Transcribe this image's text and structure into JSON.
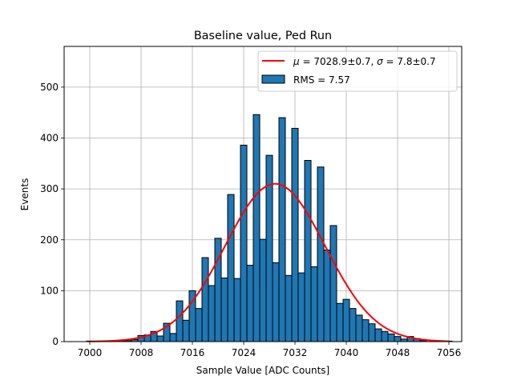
{
  "chart_data": {
    "type": "bar",
    "title": "Baseline value, Ped Run",
    "xlabel": "Sample Value [ADC Counts]",
    "ylabel": "Events",
    "xlim": [
      6996,
      7058
    ],
    "ylim": [
      0,
      580
    ],
    "xticks": [
      7000,
      7008,
      7016,
      7024,
      7032,
      7040,
      7048,
      7056
    ],
    "yticks": [
      0,
      100,
      200,
      300,
      400,
      500
    ],
    "grid": true,
    "legend_position": "top-right",
    "bin_width": 1,
    "histogram": {
      "name": "RMS = 7.57",
      "color": "#1f77b4",
      "edgecolor": "#000000",
      "bin_centers": [
        7000,
        7001,
        7002,
        7003,
        7004,
        7005,
        7006,
        7007,
        7008,
        7009,
        7010,
        7011,
        7012,
        7013,
        7014,
        7015,
        7016,
        7017,
        7018,
        7019,
        7020,
        7021,
        7022,
        7023,
        7024,
        7025,
        7026,
        7027,
        7028,
        7029,
        7030,
        7031,
        7032,
        7033,
        7034,
        7035,
        7036,
        7037,
        7038,
        7039,
        7040,
        7041,
        7042,
        7043,
        7044,
        7045,
        7046,
        7047,
        7048,
        7049,
        7050,
        7051,
        7052,
        7053,
        7054,
        7055,
        7056
      ],
      "counts": [
        1,
        0,
        1,
        1,
        0,
        2,
        2,
        4,
        12,
        13,
        20,
        11,
        36,
        16,
        80,
        42,
        100,
        65,
        165,
        110,
        203,
        125,
        289,
        124,
        386,
        150,
        446,
        201,
        366,
        155,
        440,
        130,
        419,
        135,
        356,
        147,
        343,
        180,
        228,
        75,
        83,
        65,
        52,
        43,
        35,
        25,
        20,
        15,
        10,
        5,
        10,
        6,
        2,
        0,
        1,
        0,
        1
      ]
    },
    "fit": {
      "name_mu_symbol": "μ",
      "name_sigma_symbol": "σ",
      "name_mu_value": " = 7028.9±0.7, ",
      "name_sigma_value": " = 7.8±0.7",
      "color": "#ff0000",
      "mu": 7028.9,
      "sigma": 7.8,
      "amplitude": 310,
      "x_range": [
        7000,
        7056
      ]
    }
  }
}
